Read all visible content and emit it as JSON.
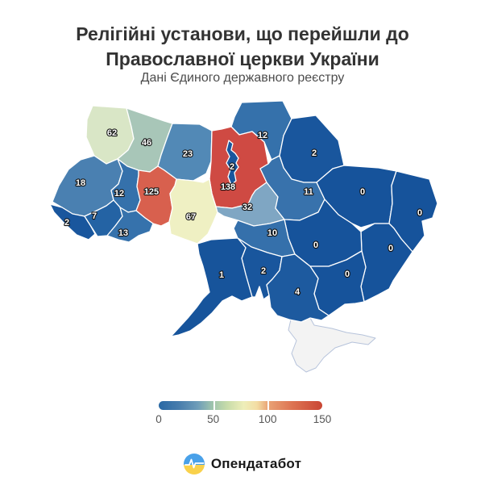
{
  "title": {
    "line1": "Релігійні установи, що перейшли до",
    "line2": "Православної церкви України"
  },
  "subtitle": "Дані Єдиного державного реєстру",
  "chart_data": {
    "type": "choropleth",
    "title": "Релігійні установи, що перейшли до Православної церкви України",
    "subtitle": "Дані Єдиного державного реєстру",
    "legend": {
      "min": 0,
      "max": 150,
      "ticks": [
        0,
        50,
        100,
        150
      ],
      "gradient_colors": [
        "#2a69a5",
        "#9fc5ac",
        "#eeeeb9",
        "#e9a275",
        "#c94634"
      ]
    },
    "regions": [
      {
        "id": "crimea",
        "name": "Crimea",
        "value": null,
        "color": "#f3f3f3"
      },
      {
        "id": "volyn",
        "name": "Volyn",
        "value": 62,
        "color": "#d9e6c6"
      },
      {
        "id": "rivne",
        "name": "Rivne",
        "value": 46,
        "color": "#a8c6b8"
      },
      {
        "id": "zhytomyr",
        "name": "Zhytomyr",
        "value": 23,
        "color": "#5289b6"
      },
      {
        "id": "chernihiv",
        "name": "Chernihiv",
        "value": 12,
        "color": "#3571ab"
      },
      {
        "id": "sumy",
        "name": "Sumy",
        "value": 2,
        "color": "#19569d"
      },
      {
        "id": "kyiv-oblast",
        "name": "Kyiv Oblast",
        "value": 138,
        "color": "#cf4a43"
      },
      {
        "id": "kyiv-city",
        "name": "Kyiv City",
        "value": 2,
        "color": "#19569d"
      },
      {
        "id": "lviv",
        "name": "Lviv",
        "value": 18,
        "color": "#4a80b1"
      },
      {
        "id": "ternopil",
        "name": "Ternopil",
        "value": 12,
        "color": "#3571ab"
      },
      {
        "id": "khmelnytskyi",
        "name": "Khmelnytskyi",
        "value": 125,
        "color": "#d8604e"
      },
      {
        "id": "zakarpattia",
        "name": "Zakarpattia",
        "value": 2,
        "color": "#19569d"
      },
      {
        "id": "ivano-frankivsk",
        "name": "Ivano-Frankivsk",
        "value": 7,
        "color": "#2463a4"
      },
      {
        "id": "chernivtsi",
        "name": "Chernivtsi",
        "value": 13,
        "color": "#3672ac"
      },
      {
        "id": "vinnytsia",
        "name": "Vinnytsia",
        "value": 67,
        "color": "#eff0c3"
      },
      {
        "id": "cherkasy",
        "name": "Cherkasy",
        "value": 32,
        "color": "#7fa6c3"
      },
      {
        "id": "poltava",
        "name": "Poltava",
        "value": 11,
        "color": "#3872ac"
      },
      {
        "id": "kharkiv",
        "name": "Kharkiv",
        "value": 0,
        "color": "#16539b"
      },
      {
        "id": "luhansk",
        "name": "Luhansk",
        "value": 0,
        "color": "#16539b"
      },
      {
        "id": "donetsk",
        "name": "Donetsk",
        "value": 0,
        "color": "#16539b"
      },
      {
        "id": "dnipropetrovsk",
        "name": "Dnipropetrovsk",
        "value": 0,
        "color": "#16539b"
      },
      {
        "id": "zaporizhzhia",
        "name": "Zaporizhzhia",
        "value": 0,
        "color": "#16539b"
      },
      {
        "id": "kirovohrad",
        "name": "Kirovohrad",
        "value": 10,
        "color": "#3570ab"
      },
      {
        "id": "mykolaiv",
        "name": "Mykolaiv",
        "value": 2,
        "color": "#19569d"
      },
      {
        "id": "kherson",
        "name": "Kherson",
        "value": 4,
        "color": "#1d5a9f"
      },
      {
        "id": "odesa",
        "name": "Odesa",
        "value": 1,
        "color": "#17549b"
      }
    ]
  },
  "legend": {
    "ticks": [
      "0",
      "50",
      "100",
      "150"
    ]
  },
  "footer": {
    "logo_text": "Опендатабот",
    "icon": {
      "blue": "#49a1e9",
      "yellow": "#f9d14b",
      "pulse": "#ffffff"
    }
  }
}
